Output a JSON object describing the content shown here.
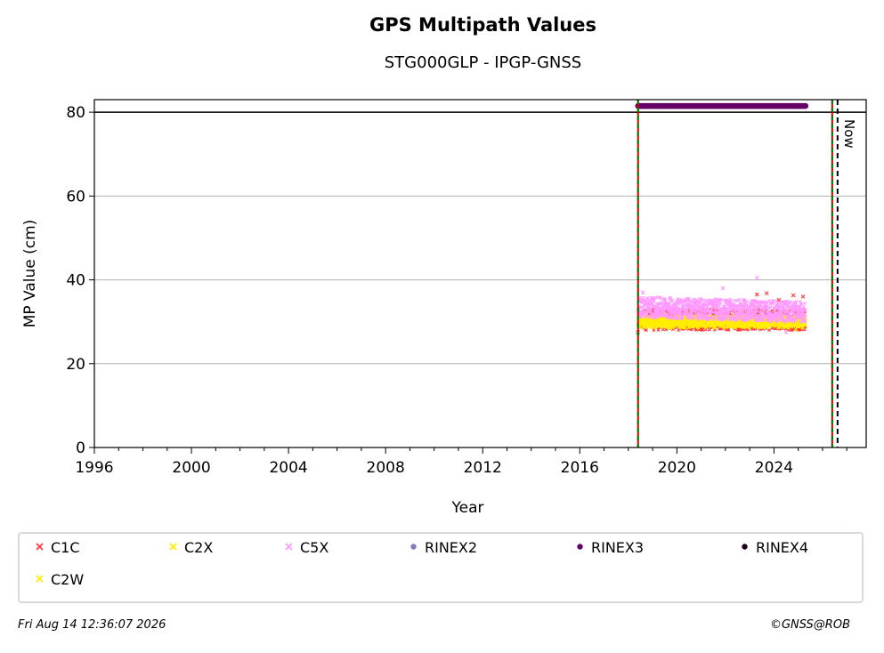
{
  "chart_data": {
    "type": "scatter",
    "title": "GPS Multipath Values",
    "subtitle": "STG000GLP - IPGP-GNSS",
    "xlabel": "Year",
    "ylabel": "MP Value (cm)",
    "xlim": [
      1996,
      2027.8
    ],
    "ylim": [
      0,
      83
    ],
    "x_ticks": [
      1996,
      2000,
      2004,
      2008,
      2012,
      2016,
      2020,
      2024
    ],
    "y_ticks": [
      0,
      20,
      40,
      60,
      80
    ],
    "grid": "horizontal",
    "reference_line_y": 80,
    "series": [
      {
        "name": "C1C",
        "color": "#ff3b3b",
        "marker": "x",
        "data_range": [
          2018.4,
          2025.3
        ],
        "typical_range": [
          28,
          33
        ],
        "outliers": [
          [
            2018.4,
            27.5
          ],
          [
            2023.3,
            36.5
          ],
          [
            2023.7,
            36.8
          ],
          [
            2024.2,
            35.2
          ],
          [
            2024.8,
            36.3
          ],
          [
            2025.2,
            36
          ]
        ]
      },
      {
        "name": "C2X",
        "color": "#ffee00",
        "marker": "x",
        "data_range": [
          2018.4,
          2025.3
        ],
        "typical_range": [
          28.5,
          31.5
        ],
        "outliers": [
          [
            2023.3,
            33.5
          ],
          [
            2024.9,
            28.2
          ]
        ]
      },
      {
        "name": "C5X",
        "color": "#ff99ff",
        "marker": "x",
        "data_range": [
          2018.4,
          2025.3
        ],
        "typical_range": [
          31,
          36
        ],
        "outliers": [
          [
            2023.3,
            40.5
          ],
          [
            2021.9,
            38
          ],
          [
            2024.5,
            27.5
          ],
          [
            2018.6,
            37
          ]
        ]
      },
      {
        "name": "RINEX2",
        "color": "#8878c0",
        "marker": "o",
        "present": false
      },
      {
        "name": "RINEX3",
        "color": "#660066",
        "marker": "o",
        "data_range": [
          2018.4,
          2025.3
        ],
        "y": 81.5
      },
      {
        "name": "RINEX4",
        "color": "#220022",
        "marker": "o",
        "present": false
      },
      {
        "name": "C2W",
        "color": "#ffee00",
        "marker": "x",
        "data_range": [
          2018.4,
          2025.3
        ],
        "typical_range": [
          29,
          31
        ]
      }
    ],
    "vertical_markers": [
      {
        "x": 2018.4,
        "style": "green-red-dashed"
      },
      {
        "x": 2026.4,
        "style": "green-red-dashed"
      },
      {
        "x": 2026.62,
        "style": "black-dashed",
        "label": "Now"
      }
    ],
    "legend_position": "bottom"
  },
  "footer": {
    "timestamp": "Fri Aug 14 12:36:07 2026",
    "copyright": "©GNSS@ROB"
  }
}
